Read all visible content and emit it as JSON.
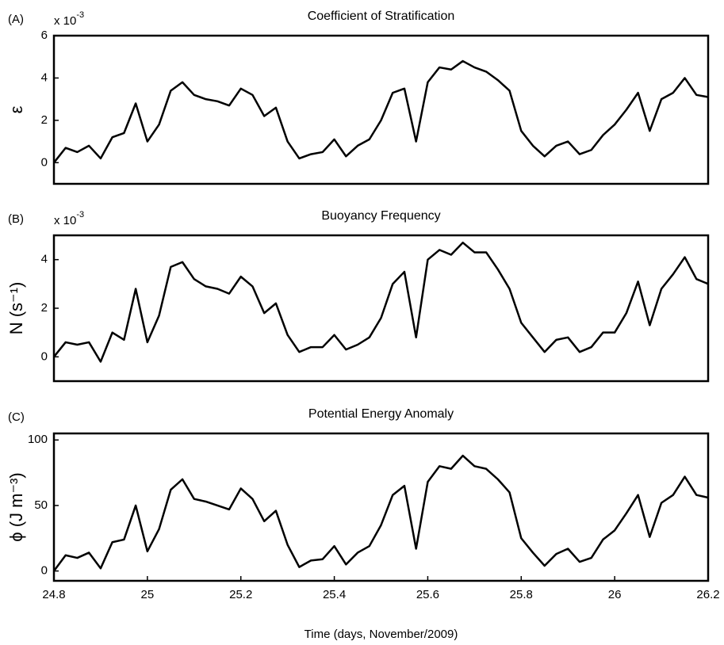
{
  "chart_data": [
    {
      "type": "line",
      "panel_label": "(A)",
      "title": "Coefficient of Stratification",
      "ylabel": "ε",
      "multiplier": "x 10",
      "multiplier_exponent": "-3",
      "x": [
        24.8,
        24.825,
        24.85,
        24.875,
        24.9,
        24.925,
        24.95,
        24.975,
        25.0,
        25.025,
        25.05,
        25.075,
        25.1,
        25.125,
        25.15,
        25.175,
        25.2,
        25.225,
        25.25,
        25.275,
        25.3,
        25.325,
        25.35,
        25.375,
        25.4,
        25.425,
        25.45,
        25.475,
        25.5,
        25.525,
        25.55,
        25.575,
        25.6,
        25.625,
        25.65,
        25.675,
        25.7,
        25.725,
        25.75,
        25.775,
        25.8,
        25.825,
        25.85,
        25.875,
        25.9,
        25.925,
        25.95,
        25.975,
        26.0,
        26.025,
        26.05,
        26.075,
        26.1,
        26.125,
        26.15,
        26.175,
        26.2
      ],
      "series": [
        {
          "color": "#000000",
          "values": [
            0,
            0.7,
            0.5,
            0.8,
            0.2,
            1.2,
            1.4,
            2.8,
            1.0,
            1.8,
            3.4,
            3.8,
            3.2,
            3.0,
            2.9,
            2.7,
            3.5,
            3.2,
            2.2,
            2.6,
            1.0,
            0.2,
            0.4,
            0.5,
            1.1,
            0.3,
            0.8,
            1.1,
            2.0,
            3.3,
            3.5,
            1.0,
            3.8,
            4.5,
            4.4,
            4.8,
            4.5,
            4.3,
            3.9,
            3.4,
            1.5,
            0.8,
            0.3,
            0.8,
            1.0,
            0.4,
            0.6,
            1.3,
            1.8,
            2.5,
            3.3,
            1.5,
            3.0,
            3.3,
            4.0,
            3.2,
            3.1
          ]
        }
      ],
      "xlim": [
        24.8,
        26.2
      ],
      "ylim": [
        -1,
        6
      ],
      "yticks": [
        0,
        2,
        4,
        6
      ]
    },
    {
      "type": "line",
      "panel_label": "(B)",
      "title": "Buoyancy Frequency",
      "ylabel": "N (s⁻¹)",
      "multiplier": "x 10",
      "multiplier_exponent": "-3",
      "x": [
        24.8,
        24.825,
        24.85,
        24.875,
        24.9,
        24.925,
        24.95,
        24.975,
        25.0,
        25.025,
        25.05,
        25.075,
        25.1,
        25.125,
        25.15,
        25.175,
        25.2,
        25.225,
        25.25,
        25.275,
        25.3,
        25.325,
        25.35,
        25.375,
        25.4,
        25.425,
        25.45,
        25.475,
        25.5,
        25.525,
        25.55,
        25.575,
        25.6,
        25.625,
        25.65,
        25.675,
        25.7,
        25.725,
        25.75,
        25.775,
        25.8,
        25.825,
        25.85,
        25.875,
        25.9,
        25.925,
        25.95,
        25.975,
        26.0,
        26.025,
        26.05,
        26.075,
        26.1,
        26.125,
        26.15,
        26.175,
        26.2
      ],
      "series": [
        {
          "color": "#000000",
          "values": [
            0,
            0.6,
            0.5,
            0.6,
            -0.2,
            1.0,
            0.7,
            2.8,
            0.6,
            1.7,
            3.7,
            3.9,
            3.2,
            2.9,
            2.8,
            2.6,
            3.3,
            2.9,
            1.8,
            2.2,
            0.9,
            0.2,
            0.4,
            0.4,
            0.9,
            0.3,
            0.5,
            0.8,
            1.6,
            3.0,
            3.5,
            0.8,
            4.0,
            4.4,
            4.2,
            4.7,
            4.3,
            4.3,
            3.6,
            2.8,
            1.4,
            0.8,
            0.2,
            0.7,
            0.8,
            0.2,
            0.4,
            1.0,
            1.0,
            1.8,
            3.1,
            1.3,
            2.8,
            3.4,
            4.1,
            3.2,
            3.0
          ]
        }
      ],
      "xlim": [
        24.8,
        26.2
      ],
      "ylim": [
        -1,
        5
      ],
      "yticks": [
        0,
        2,
        4
      ]
    },
    {
      "type": "line",
      "panel_label": "(C)",
      "title": "Potential Energy Anomaly",
      "ylabel": "ϕ (J m⁻³)",
      "xlabel": "Time (days, November/2009)",
      "x": [
        24.8,
        24.825,
        24.85,
        24.875,
        24.9,
        24.925,
        24.95,
        24.975,
        25.0,
        25.025,
        25.05,
        25.075,
        25.1,
        25.125,
        25.15,
        25.175,
        25.2,
        25.225,
        25.25,
        25.275,
        25.3,
        25.325,
        25.35,
        25.375,
        25.4,
        25.425,
        25.45,
        25.475,
        25.5,
        25.525,
        25.55,
        25.575,
        25.6,
        25.625,
        25.65,
        25.675,
        25.7,
        25.725,
        25.75,
        25.775,
        25.8,
        25.825,
        25.85,
        25.875,
        25.9,
        25.925,
        25.95,
        25.975,
        26.0,
        26.025,
        26.05,
        26.075,
        26.1,
        26.125,
        26.15,
        26.175,
        26.2
      ],
      "series": [
        {
          "color": "#000000",
          "values": [
            0,
            12,
            10,
            14,
            2,
            22,
            24,
            50,
            15,
            32,
            62,
            70,
            55,
            53,
            50,
            47,
            63,
            55,
            38,
            46,
            20,
            3,
            8,
            9,
            19,
            5,
            14,
            19,
            35,
            58,
            65,
            17,
            68,
            80,
            78,
            88,
            80,
            78,
            70,
            60,
            25,
            14,
            4,
            13,
            17,
            7,
            10,
            24,
            31,
            44,
            58,
            26,
            52,
            58,
            72,
            58,
            56
          ]
        }
      ],
      "xlim": [
        24.8,
        26.2
      ],
      "ylim": [
        -7.5,
        105
      ],
      "yticks": [
        0,
        50,
        100
      ],
      "xticks": [
        24.8,
        25,
        25.2,
        25.4,
        25.6,
        25.8,
        26,
        26.2
      ]
    }
  ]
}
